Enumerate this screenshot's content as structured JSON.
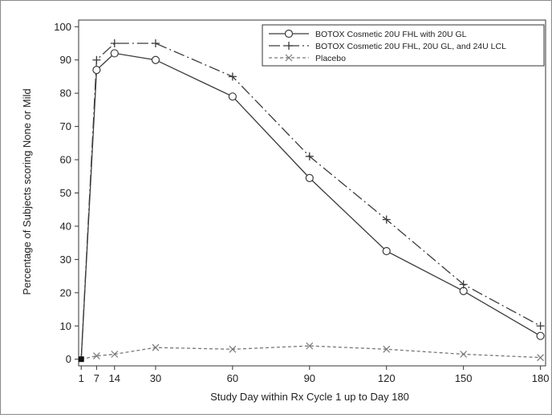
{
  "chart_data": {
    "type": "line",
    "title": "",
    "xlabel": "Study Day within Rx Cycle 1 up to Day 180",
    "ylabel": "Percentage of Subjects scoring None or Mild",
    "x": [
      1,
      7,
      14,
      30,
      60,
      90,
      120,
      150,
      180
    ],
    "xticks": [
      "1",
      "7",
      "14",
      "30",
      "60",
      "90",
      "120",
      "150",
      "180"
    ],
    "yticks": [
      "0",
      "10",
      "20",
      "30",
      "40",
      "50",
      "60",
      "70",
      "80",
      "90",
      "100"
    ],
    "xlim": [
      0,
      182
    ],
    "ylim": [
      -2,
      102
    ],
    "grid": false,
    "legend_position": "top-right",
    "series": [
      {
        "name": "BOTOX Cosmetic 20U FHL with 20U GL",
        "marker": "circle",
        "dash": "solid",
        "color": "#3a3a3a",
        "values": [
          0,
          87,
          92,
          90,
          79,
          54.5,
          32.5,
          20.5,
          7
        ]
      },
      {
        "name": "BOTOX Cosmetic 20U FHL, 20U GL, and 24U LCL",
        "marker": "plus",
        "dash": "long-dash-dot",
        "color": "#3a3a3a",
        "values": [
          0,
          90,
          95,
          95,
          85,
          61,
          42,
          22.5,
          10
        ]
      },
      {
        "name": "Placebo",
        "marker": "x",
        "dash": "short-dash",
        "color": "#777777",
        "values": [
          0,
          1,
          1.5,
          3.5,
          3,
          4,
          3,
          1.5,
          0.5
        ]
      }
    ]
  }
}
